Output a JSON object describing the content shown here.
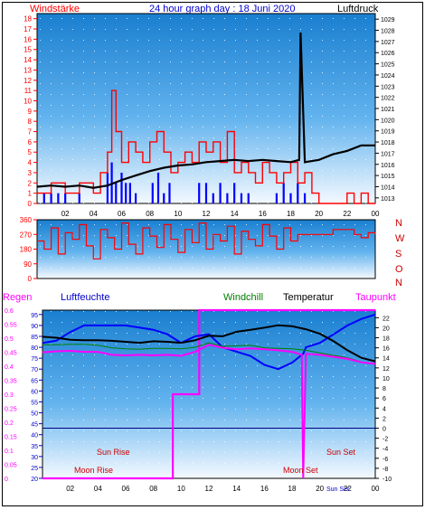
{
  "header": {
    "left_label": "Windstärke",
    "title": "24 hour graph day : 18 Juni 2020",
    "right_label": "Luftdruck"
  },
  "dir_panel": {
    "letters": [
      "N",
      "W",
      "S",
      "O",
      "N"
    ]
  },
  "legend": {
    "regen": "Regen",
    "luftfeuchte": "Luftfeuchte",
    "windchill": "Windchill",
    "temperatur": "Temperatur",
    "taupunkt": "Taupunkt"
  },
  "annotations": {
    "sun_rise": "Sun Rise",
    "moon_rise": "Moon Rise",
    "moon_set": "Moon Set",
    "sun_set": "Sun Set",
    "sun_set_small": "Sun Set"
  },
  "colors": {
    "wind": "#ff0000",
    "pressure": "#000000",
    "gust_blue": "#0000ff",
    "humidity": "#0000ff",
    "windchill": "#008000",
    "temperature": "#000000",
    "dewpoint": "#ff00ff",
    "rain": "#ff00ff",
    "annotation": "#cc0000"
  },
  "chart_data": [
    {
      "type": "line",
      "name": "wind_pressure",
      "x_ticks": [
        "02",
        "04",
        "06",
        "08",
        "10",
        "12",
        "14",
        "16",
        "18",
        "20",
        "22",
        "00"
      ],
      "y_left_ticks": [
        "0",
        "1",
        "2",
        "3",
        "4",
        "5",
        "6",
        "7",
        "8",
        "9",
        "10",
        "11",
        "12",
        "13",
        "14",
        "15",
        "16",
        "17",
        "18"
      ],
      "y_left_range": [
        0,
        18.5
      ],
      "y_right_ticks": [
        "1013",
        "1014",
        "1015",
        "1016",
        "1017",
        "1018",
        "1019",
        "1020",
        "1021",
        "1022",
        "1023",
        "1024",
        "1025",
        "1026",
        "1027",
        "1028",
        "1029"
      ],
      "y_right_range": [
        1012.5,
        1029.5
      ],
      "x_range": [
        0,
        24
      ],
      "pressure": {
        "x": [
          0,
          1,
          2,
          3,
          4,
          5,
          6,
          7,
          8,
          9,
          10,
          11,
          12,
          13,
          14,
          15,
          16,
          17,
          18,
          18.6,
          18.7,
          19,
          20,
          21,
          22,
          23,
          24
        ],
        "y": [
          1014.0,
          1014.1,
          1014.0,
          1014.1,
          1013.9,
          1014.1,
          1014.6,
          1015.0,
          1015.4,
          1015.7,
          1015.9,
          1016.0,
          1016.2,
          1016.3,
          1016.4,
          1016.3,
          1016.4,
          1016.3,
          1016.2,
          1016.4,
          1027.8,
          1016.2,
          1016.4,
          1016.9,
          1017.2,
          1017.7,
          1017.7
        ]
      },
      "wind": {
        "x": [
          0,
          1,
          2,
          3,
          4,
          4.5,
          5,
          5.3,
          5.6,
          6,
          6.5,
          7,
          7.5,
          8,
          8.5,
          9,
          9.5,
          10,
          10.5,
          11,
          11.5,
          12,
          12.5,
          13,
          13.5,
          14,
          14.5,
          15,
          15.5,
          16,
          16.5,
          17,
          17.5,
          18,
          18.5,
          19,
          19.5,
          20,
          21,
          22,
          22.5,
          23,
          23.5,
          24
        ],
        "y": [
          1,
          2,
          1,
          2,
          1,
          3,
          5,
          11,
          7,
          4,
          6,
          5,
          4,
          6,
          7,
          5,
          3,
          4,
          5,
          4,
          6,
          5,
          6,
          4,
          7,
          3,
          4,
          3,
          2,
          4,
          3,
          2,
          3,
          4,
          2,
          3,
          1,
          0,
          0,
          1,
          0,
          1,
          0,
          0
        ]
      },
      "gust_blue": {
        "x": [
          0.5,
          1,
          1.5,
          2,
          3,
          5,
          5.3,
          5.6,
          6,
          6.3,
          6.6,
          7,
          8.2,
          8.6,
          9,
          9.4,
          11.5,
          12,
          12.5,
          13,
          13.5,
          14,
          14.5,
          15,
          17,
          17.5,
          18,
          18.5,
          19
        ],
        "y": [
          1,
          1,
          1,
          1,
          1,
          3,
          4,
          2,
          3,
          2,
          2,
          1,
          2,
          3,
          1,
          2,
          2,
          2,
          1,
          2,
          1,
          2,
          1,
          1,
          1,
          2,
          1,
          2,
          1
        ]
      }
    },
    {
      "type": "line",
      "name": "wind_direction",
      "y_ticks": [
        "0",
        "90",
        "180",
        "270",
        "360"
      ],
      "y_range": [
        0,
        360
      ],
      "x_range": [
        0,
        24
      ],
      "direction": {
        "x": [
          0,
          0.5,
          1,
          1.5,
          2,
          2.5,
          3,
          3.5,
          4,
          4.5,
          5,
          5.5,
          6,
          6.5,
          7,
          7.5,
          8,
          8.5,
          9,
          9.5,
          10,
          10.5,
          11,
          11.5,
          12,
          12.5,
          13,
          13.5,
          14,
          14.5,
          15,
          15.5,
          16,
          16.5,
          17,
          17.5,
          18,
          18.5,
          19,
          19.5,
          20,
          21,
          22,
          22.5,
          23,
          23.5,
          24
        ],
        "y": [
          230,
          180,
          310,
          150,
          280,
          240,
          330,
          200,
          120,
          300,
          250,
          180,
          340,
          210,
          150,
          310,
          260,
          190,
          330,
          240,
          160,
          300,
          220,
          340,
          180,
          270,
          230,
          320,
          150,
          290,
          240,
          200,
          330,
          260,
          180,
          310,
          230,
          270,
          270,
          270,
          270,
          300,
          300,
          270,
          250,
          280,
          270
        ]
      }
    },
    {
      "type": "line",
      "name": "weather",
      "x_ticks": [
        "02",
        "04",
        "06",
        "08",
        "10",
        "12",
        "14",
        "16",
        "18",
        "20",
        "22",
        "00"
      ],
      "y_rain_ticks": [
        "0",
        "0.05",
        "0.1",
        "0.15",
        "0.2",
        "0.25",
        "0.3",
        "0.35",
        "0.4",
        "0.45",
        "0.5",
        "0.55",
        "0.6"
      ],
      "y_rain_range": [
        0,
        0.6
      ],
      "y_humidity_ticks": [
        "20",
        "25",
        "30",
        "35",
        "40",
        "45",
        "50",
        "55",
        "60",
        "65",
        "70",
        "75",
        "80",
        "85",
        "90",
        "95"
      ],
      "y_humidity_range": [
        20,
        97
      ],
      "y_temp_ticks": [
        "-10",
        "-8",
        "-6",
        "-4",
        "-2",
        "0",
        "2",
        "4",
        "6",
        "8",
        "10",
        "12",
        "14",
        "16",
        "18",
        "20",
        "22"
      ],
      "y_temp_range": [
        -10,
        23.5
      ],
      "x_range": [
        0,
        24
      ],
      "temperature": {
        "x": [
          0,
          1,
          2,
          3,
          4,
          5,
          6,
          7,
          8,
          9,
          10,
          11,
          12,
          13,
          14,
          15,
          16,
          17,
          18,
          19,
          20,
          21,
          22,
          23,
          24
        ],
        "y": [
          18.2,
          18.0,
          17.6,
          17.5,
          17.5,
          17.4,
          17.2,
          17.0,
          17.3,
          17.2,
          17.0,
          17.5,
          18.4,
          18.3,
          19.2,
          19.6,
          20.0,
          20.5,
          20.3,
          19.7,
          18.8,
          17.3,
          15.5,
          14.0,
          13.3
        ]
      },
      "humidity": {
        "x": [
          0,
          1,
          2,
          3,
          4,
          5,
          6,
          7,
          8,
          9,
          10,
          11,
          12,
          13,
          14,
          15,
          16,
          17,
          18,
          18.8,
          19,
          20,
          21,
          22,
          23,
          24
        ],
        "y": [
          82,
          83,
          87,
          90,
          90,
          90,
          90,
          89,
          88,
          86,
          82,
          85,
          86,
          80,
          78,
          76,
          72,
          70,
          73,
          77,
          80,
          82,
          86,
          90,
          93,
          95
        ]
      },
      "windchill": {
        "x": [
          0,
          1,
          2,
          3,
          4,
          5,
          6,
          7,
          8,
          9,
          10,
          11,
          12,
          13,
          14,
          15,
          16,
          17,
          18,
          19,
          20,
          21,
          22,
          23,
          24
        ],
        "y": [
          16.6,
          16.6,
          16.7,
          16.7,
          16.5,
          16.0,
          15.8,
          15.7,
          15.9,
          15.9,
          15.8,
          16.1,
          17.0,
          16.3,
          16.4,
          16.5,
          16.0,
          15.9,
          15.8,
          15.5,
          15.0,
          14.5,
          14.0,
          13.2,
          12.7
        ]
      },
      "dewpoint": {
        "x": [
          0,
          1,
          2,
          3,
          4,
          5,
          6,
          7,
          8,
          9,
          10,
          11,
          12,
          13,
          14,
          15,
          16,
          17,
          18,
          18.7,
          18.8,
          19,
          20,
          21,
          22,
          23,
          24
        ],
        "y": [
          15.1,
          15.3,
          15.4,
          15.2,
          15.2,
          14.6,
          14.5,
          14.6,
          14.5,
          14.6,
          14.4,
          15.2,
          16.6,
          16.0,
          15.7,
          15.9,
          15.7,
          15.5,
          15.2,
          14.6,
          -10,
          14.8,
          14.6,
          14.2,
          13.8,
          13.1,
          12.8
        ]
      },
      "rain": {
        "x": [
          0,
          9.4,
          9.4,
          11.3,
          11.3,
          24
        ],
        "y": [
          0,
          0,
          0.3,
          0.3,
          0.6,
          0.6
        ]
      },
      "zero_line_temp": 0
    }
  ]
}
